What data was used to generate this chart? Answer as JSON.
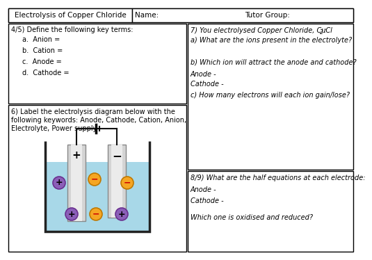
{
  "background_color": "#ffffff",
  "header_title": "Electrolysis of Copper Chloride",
  "header_name": "Name:",
  "header_tutor": "Tutor Group:",
  "section_45_title": "4/5) Define the following key terms:",
  "section_45_items": [
    "a.  Anion =",
    "b.  Cation =",
    "c.  Anode =",
    "d.  Cathode ="
  ],
  "section_6_line1": "6) Label the electrolysis diagram below with the",
  "section_6_line2": "following keywords: Anode, Cathode, Cation, Anion,",
  "section_6_line3": "Electrolyte, Power supply",
  "section_7_line1": "7) You electrolysed Copper Chloride, CuCl",
  "section_7_sub": "2",
  "section_7_line1_end": ":",
  "section_7_a": "a) What are the ions present in the electrolyte?",
  "section_7_b": "b) Which ion will attract the anode and cathode?",
  "section_7_anode": "Anode -",
  "section_7_cathode": "Cathode -",
  "section_7_c": "c) How many electrons will each ion gain/lose?",
  "section_89_title": "8/9) What are the half equations at each electrode:",
  "section_89_anode": "Anode -",
  "section_89_cathode": "Cathode -",
  "section_89_q": "Which one is oxidised and reduced?",
  "border_color": "#000000",
  "electrolyte_color": "#a8d8e8",
  "beaker_color": "#222222",
  "electrode_color": "#c8c8c8",
  "electrode_border": "#888888",
  "cation_color": "#f5a623",
  "anion_color": "#8b5fb8",
  "wire_color": "#111111",
  "text_color": "#000000"
}
